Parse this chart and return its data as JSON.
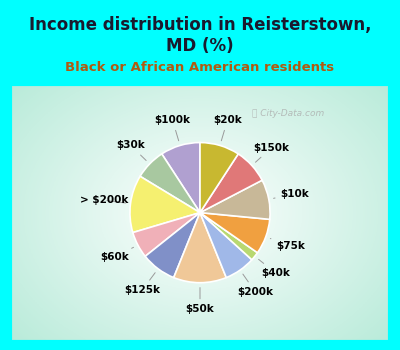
{
  "title": "Income distribution in Reisterstown,\nMD (%)",
  "subtitle": "Black or African American residents",
  "title_color": "#1a1a2e",
  "subtitle_color": "#b05a10",
  "bg_cyan": "#00FFFF",
  "bg_chart_edge": "#b8e8d8",
  "watermark": "ⓘ City-Data.com",
  "labels": [
    "$100k",
    "$30k",
    "> $200k",
    "$60k",
    "$125k",
    "$50k",
    "$200k",
    "$40k",
    "$75k",
    "$10k",
    "$150k",
    "$20k"
  ],
  "sizes": [
    9,
    7,
    13,
    6,
    8,
    12,
    7,
    2,
    8,
    9,
    8,
    9
  ],
  "colors": [
    "#b0a0d0",
    "#a8c8a0",
    "#f5f070",
    "#f0b0b8",
    "#8090c8",
    "#f0c898",
    "#a0b8e8",
    "#b8d870",
    "#f0a040",
    "#c8b898",
    "#e07878",
    "#c8b830"
  ],
  "startangle": 90,
  "title_fontsize": 12,
  "subtitle_fontsize": 9.5,
  "label_fontsize": 7.5
}
